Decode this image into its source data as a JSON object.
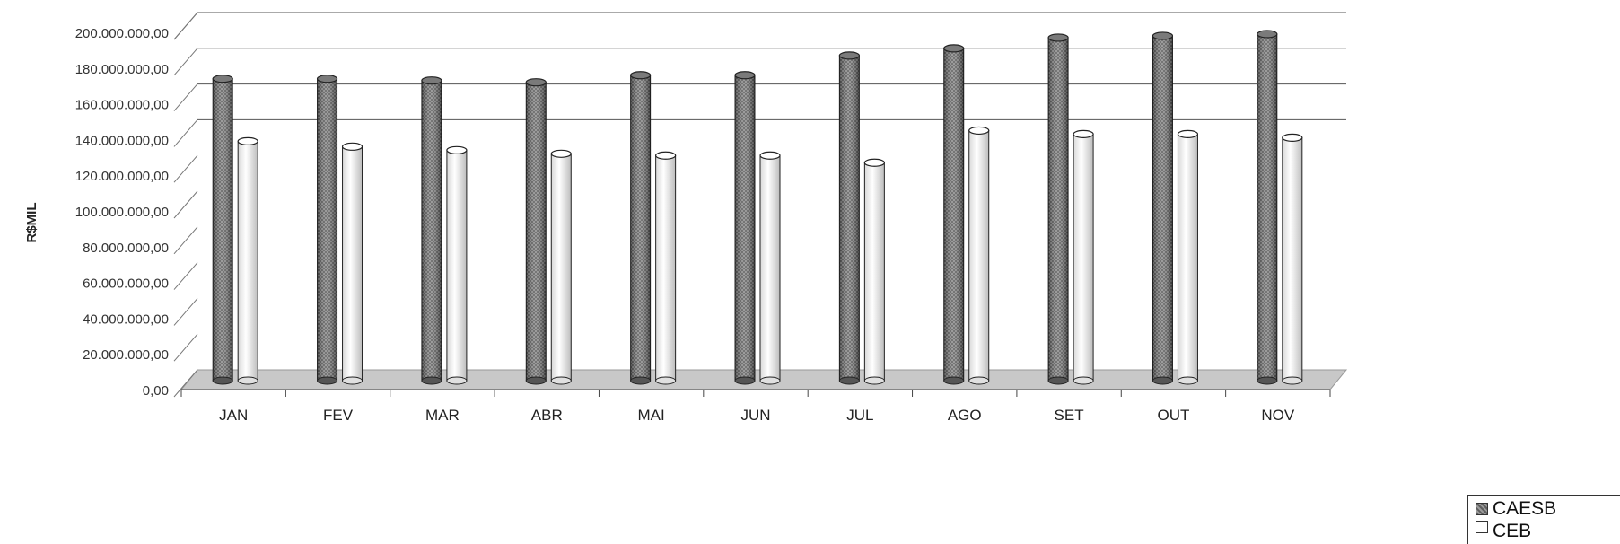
{
  "chart_data": {
    "type": "bar",
    "title": "",
    "xlabel": "",
    "ylabel": "R$MIL",
    "categories": [
      "JAN",
      "FEV",
      "MAR",
      "ABR",
      "MAI",
      "JUN",
      "JUL",
      "AGO",
      "SET",
      "OUT",
      "NOV"
    ],
    "series": [
      {
        "name": "CAESB",
        "values": [
          171000000,
          171000000,
          170000000,
          169000000,
          173000000,
          173000000,
          184000000,
          188000000,
          194000000,
          195000000,
          196000000
        ]
      },
      {
        "name": "CEB",
        "values": [
          136000000,
          133000000,
          131000000,
          129000000,
          128000000,
          128000000,
          124000000,
          142000000,
          140000000,
          140000000,
          138000000
        ]
      }
    ],
    "ylim": [
      0,
      200000000
    ],
    "yticks": [
      "0,00",
      "20.000.000,00",
      "40.000.000,00",
      "60.000.000,00",
      "80.000.000,00",
      "100.000.000,00",
      "120.000.000,00",
      "140.000.000,00",
      "160.000.000,00",
      "180.000.000,00",
      "200.000.000,00"
    ],
    "grid": true,
    "legend_position": "bottom-right",
    "colors": {
      "CAESB": "#6e6e6e",
      "CEB": "#f2f2f2",
      "floor": "#c8c8c8"
    }
  }
}
